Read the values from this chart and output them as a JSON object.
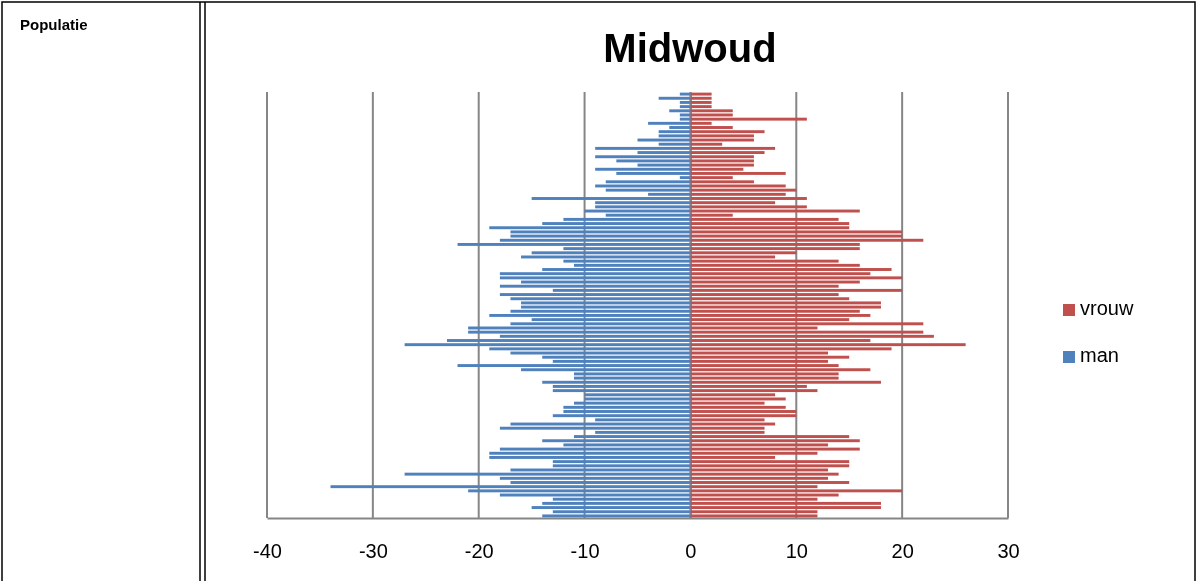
{
  "chart_data": {
    "type": "bar",
    "orientation": "horizontal",
    "stacked": true,
    "title": "Midwoud",
    "annotations": [
      "Populatie"
    ],
    "categories": [
      null,
      null,
      null,
      null,
      null,
      null,
      null,
      null,
      null,
      null,
      null,
      null,
      null,
      null,
      null,
      null,
      null,
      null,
      null,
      null,
      null,
      null,
      null,
      null,
      null,
      null,
      null,
      null,
      null,
      null,
      null,
      null,
      null,
      null,
      null,
      null,
      null,
      null,
      null,
      null,
      null,
      null,
      null,
      null,
      null,
      null,
      null,
      null,
      null,
      null,
      null,
      null,
      null,
      null,
      null,
      null,
      null,
      null,
      null,
      null,
      null,
      null,
      null,
      null,
      null,
      null,
      null,
      null,
      null,
      null,
      null,
      null,
      null,
      null,
      null,
      null,
      null,
      null,
      null,
      null,
      null,
      null,
      null,
      null,
      null,
      null,
      null,
      null,
      null,
      null,
      null,
      null,
      null,
      null,
      null,
      null,
      null,
      null,
      null,
      null,
      null,
      null
    ],
    "series": [
      {
        "name": "vrouw",
        "color": "#c0504d",
        "values": [
          2,
          2,
          2,
          2,
          4,
          4,
          11,
          2,
          4,
          7,
          6,
          6,
          3,
          8,
          7,
          6,
          6,
          6,
          5,
          9,
          4,
          6,
          9,
          10,
          9,
          11,
          8,
          11,
          16,
          4,
          14,
          15,
          15,
          20,
          20,
          22,
          16,
          16,
          10,
          8,
          14,
          16,
          19,
          17,
          20,
          16,
          14,
          20,
          14,
          15,
          18,
          18,
          16,
          17,
          15,
          22,
          12,
          22,
          23,
          17,
          26,
          19,
          13,
          15,
          13,
          14,
          17,
          14,
          14,
          18,
          11,
          12,
          8,
          9,
          7,
          9,
          10,
          10,
          7,
          8,
          7,
          7,
          15,
          16,
          13,
          16,
          12,
          8,
          15,
          15,
          13,
          14,
          13,
          15,
          12,
          20,
          14,
          12,
          18,
          18,
          12,
          12
        ]
      },
      {
        "name": "man",
        "color": "#4f81bd",
        "values": [
          -1,
          -3,
          -1,
          -1,
          -2,
          -1,
          -1,
          -4,
          -2,
          -3,
          -3,
          -5,
          -3,
          -9,
          -5,
          -9,
          -7,
          -5,
          -9,
          -7,
          -1,
          -8,
          -9,
          -8,
          -4,
          -15,
          -9,
          -9,
          -10,
          -8,
          -12,
          -14,
          -19,
          -17,
          -17,
          -18,
          -22,
          -12,
          -15,
          -16,
          -12,
          -11,
          -14,
          -18,
          -18,
          -16,
          -18,
          -13,
          -18,
          -17,
          -16,
          -16,
          -17,
          -19,
          -15,
          -17,
          -21,
          -21,
          -18,
          -23,
          -27,
          -19,
          -17,
          -14,
          -13,
          -22,
          -16,
          -11,
          -11,
          -14,
          -13,
          -13,
          -10,
          -10,
          -11,
          -12,
          -12,
          -13,
          -9,
          -17,
          -18,
          -9,
          -11,
          -14,
          -12,
          -18,
          -19,
          -19,
          -13,
          -13,
          -17,
          -27,
          -18,
          -17,
          -34,
          -21,
          -18,
          -13,
          -14,
          -15,
          -13,
          -14
        ]
      }
    ],
    "xlim": [
      -40,
      30
    ],
    "xticks": [
      -40,
      -30,
      -20,
      -10,
      0,
      10,
      20,
      30
    ],
    "grid": "x",
    "legend": "right"
  }
}
